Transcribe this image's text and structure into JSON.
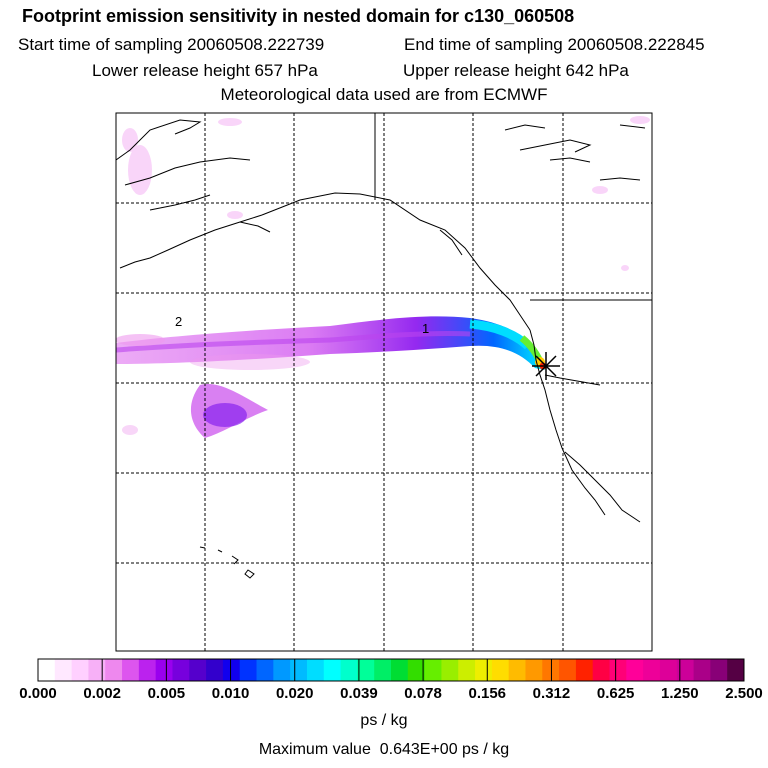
{
  "header": {
    "title": "Footprint emission sensitivity in nested domain for c130_060508",
    "start_label": "Start time of sampling 20060508.222739",
    "end_label": "End time of sampling 20060508.222845",
    "lower_label": "Lower release height  657 hPa",
    "upper_label": "Upper release height  642 hPa",
    "met_label": "Meteorological data used are from ECMWF"
  },
  "map": {
    "contour_labels": [
      "2",
      "1"
    ],
    "receptor_marker": "star-cross-icon",
    "colors": {
      "land_outline": "#000000",
      "grid": "#000000"
    }
  },
  "legend": {
    "colors": [
      "#ffffff",
      "#ffe8ff",
      "#ffd0ff",
      "#f7b0f7",
      "#ee88ee",
      "#dd55ee",
      "#bb22ee",
      "#9900ee",
      "#7700dd",
      "#5500cc",
      "#3300cc",
      "#1100ee",
      "#0033ff",
      "#0066ff",
      "#0099ff",
      "#00bbff",
      "#00ddff",
      "#00ffff",
      "#00ffcc",
      "#00ff99",
      "#00ee66",
      "#00dd33",
      "#33dd00",
      "#66ee00",
      "#99ee00",
      "#ccee00",
      "#eeee00",
      "#ffdd00",
      "#ffbb00",
      "#ff9900",
      "#ff7700",
      "#ff5500",
      "#ff2200",
      "#ff0044",
      "#ff0077",
      "#ff0099",
      "#ee0099",
      "#dd0099",
      "#cc0099",
      "#aa0088",
      "#880077",
      "#550044"
    ],
    "tick_labels": [
      "0.000",
      "0.002",
      "0.005",
      "0.010",
      "0.020",
      "0.039",
      "0.078",
      "0.156",
      "0.312",
      "0.625",
      "1.250",
      "2.500"
    ],
    "unit": "ps / kg",
    "max_value": "Maximum value  0.643E+00 ps / kg"
  }
}
